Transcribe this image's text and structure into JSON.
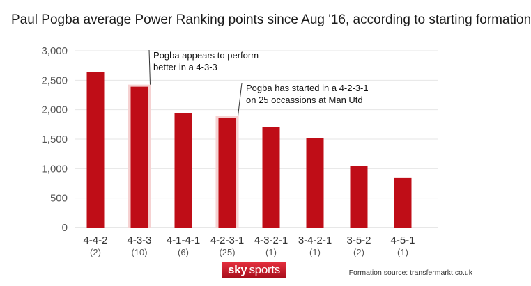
{
  "title": "Paul Pogba average Power Ranking points since Aug '16, according to starting formation",
  "chart_data": {
    "type": "bar",
    "categories": [
      "4-4-2",
      "4-3-3",
      "4-1-4-1",
      "4-2-3-1",
      "4-3-2-1",
      "3-4-2-1",
      "3-5-2",
      "4-5-1"
    ],
    "sublabels": [
      "(2)",
      "(10)",
      "(6)",
      "(25)",
      "(1)",
      "(1)",
      "(2)",
      "(1)"
    ],
    "values": [
      2640,
      2390,
      1940,
      1860,
      1710,
      1520,
      1050,
      840
    ],
    "ylim": [
      0,
      3000
    ],
    "yticks": [
      0,
      500,
      1000,
      1500,
      2000,
      2500,
      3000
    ],
    "ytick_labels": [
      "0",
      "500",
      "1,000",
      "1,500",
      "2,000",
      "2,500",
      "3,000"
    ],
    "highlighted": [
      "4-3-3",
      "4-2-3-1"
    ],
    "annotations": [
      {
        "target": "4-3-3",
        "lines": [
          "Pogba appears to perform",
          "better in a 4-3-3"
        ]
      },
      {
        "target": "4-2-3-1",
        "lines": [
          "Pogba has started in a 4-2-3-1",
          "on 25 occassions at Man Utd"
        ]
      }
    ],
    "xlabel": "",
    "ylabel": "",
    "grid": true,
    "bar_color": "#bf0d17",
    "highlight_color": "#f6d2d2"
  },
  "footer": {
    "logo_sky": "sky",
    "logo_sports": "sports",
    "source": "Formation source: transfermarkt.co.uk"
  }
}
